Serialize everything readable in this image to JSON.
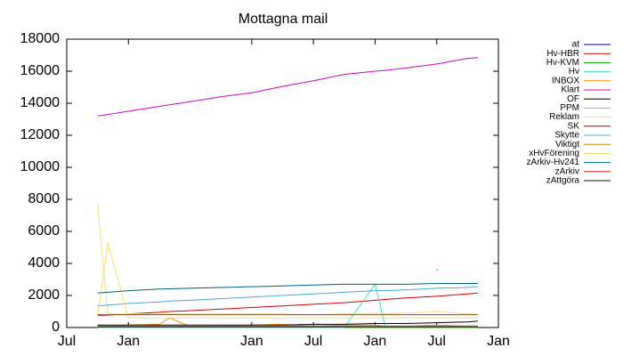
{
  "chart_data": {
    "type": "line",
    "title": "Mottagna mail",
    "x": [
      3,
      4,
      6,
      9,
      10,
      12,
      15,
      18,
      21,
      24,
      27,
      30,
      31,
      33,
      36,
      39,
      40
    ],
    "xlim": [
      0,
      42
    ],
    "xticks": [
      {
        "value": 0,
        "label": "Jul"
      },
      {
        "value": 6,
        "label": "Jan"
      },
      {
        "value": 18,
        "label": "Jan"
      },
      {
        "value": 24,
        "label": "Jul"
      },
      {
        "value": 30,
        "label": "Jan"
      },
      {
        "value": 36,
        "label": "Jul"
      },
      {
        "value": 42,
        "label": "Jan"
      }
    ],
    "ylim": [
      0,
      18000
    ],
    "yticks": [
      0,
      2000,
      4000,
      6000,
      8000,
      10000,
      12000,
      14000,
      16000,
      18000
    ],
    "legend": "top-right",
    "series": [
      {
        "name": "at",
        "color": "#0000cc",
        "values": [
          null,
          null,
          null,
          null,
          null,
          null,
          null,
          null,
          null,
          null,
          null,
          null,
          null,
          null,
          3600,
          null,
          null
        ]
      },
      {
        "name": "Hv-HBR",
        "color": "#cc0000",
        "values": [
          750,
          780,
          850,
          950,
          1000,
          1050,
          1150,
          1250,
          1350,
          1450,
          1550,
          1700,
          1750,
          1850,
          1950,
          2100,
          2150
        ]
      },
      {
        "name": "Hv-KVM",
        "color": "#00aa00",
        "values": [
          0,
          0,
          0,
          0,
          0,
          0,
          0,
          0,
          0,
          0,
          0,
          0,
          0,
          0,
          0,
          0,
          0
        ]
      },
      {
        "name": "Hv",
        "color": "#40e0d0",
        "values": [
          0,
          0,
          0,
          0,
          0,
          0,
          0,
          0,
          0,
          0,
          0,
          2700,
          50,
          50,
          50,
          50,
          50
        ]
      },
      {
        "name": "INBOX",
        "color": "#ff8c00",
        "values": [
          100,
          100,
          150,
          200,
          600,
          50,
          100,
          150,
          200,
          100,
          150,
          150,
          100,
          100,
          150,
          100,
          100
        ]
      },
      {
        "name": "Klart",
        "color": "#cc00cc",
        "values": [
          13200,
          13300,
          13500,
          13800,
          13900,
          14100,
          14400,
          14650,
          15050,
          15400,
          15800,
          16000,
          16050,
          16200,
          16450,
          16800,
          16850
        ]
      },
      {
        "name": "OF",
        "color": "#000000",
        "values": [
          150,
          150,
          150,
          150,
          150,
          150,
          150,
          150,
          150,
          200,
          200,
          250,
          250,
          250,
          300,
          350,
          400
        ]
      },
      {
        "name": "PPM",
        "color": "#aaaaaa",
        "values": [
          100,
          100,
          100,
          100,
          100,
          100,
          100,
          100,
          100,
          100,
          100,
          100,
          100,
          100,
          100,
          100,
          100
        ]
      },
      {
        "name": "Reklam",
        "color": "#f5dc8c",
        "values": [
          7700,
          850,
          850,
          850,
          850,
          850,
          850,
          850,
          850,
          800,
          850,
          900,
          850,
          900,
          1000,
          850,
          850
        ]
      },
      {
        "name": "SK",
        "color": "#aa0000",
        "values": [
          50,
          50,
          50,
          50,
          50,
          50,
          50,
          50,
          50,
          50,
          50,
          50,
          50,
          50,
          50,
          50,
          50
        ]
      },
      {
        "name": "Skytte",
        "color": "#4aa8d8",
        "values": [
          1350,
          1400,
          1500,
          1600,
          1650,
          1700,
          1800,
          1900,
          2000,
          2100,
          2200,
          2300,
          2300,
          2350,
          2450,
          2500,
          2550
        ]
      },
      {
        "name": "Viktigt",
        "color": "#cc8800",
        "values": [
          20,
          20,
          20,
          20,
          20,
          20,
          20,
          20,
          20,
          20,
          20,
          20,
          20,
          20,
          20,
          20,
          20
        ]
      },
      {
        "name": "xHvFörening",
        "color": "#f0e060",
        "values": [
          600,
          5300,
          600,
          600,
          600,
          600,
          600,
          600,
          600,
          600,
          600,
          600,
          600,
          600,
          600,
          600,
          600
        ]
      },
      {
        "name": "zArkiv-Hv241",
        "color": "#006080",
        "values": [
          2150,
          2200,
          2300,
          2400,
          2420,
          2450,
          2500,
          2550,
          2600,
          2650,
          2700,
          2700,
          2700,
          2700,
          2750,
          2750,
          2750
        ]
      },
      {
        "name": "zArkiv",
        "color": "#dd2222",
        "values": [
          800,
          800,
          800,
          800,
          800,
          800,
          800,
          800,
          800,
          800,
          800,
          800,
          800,
          800,
          800,
          800,
          800
        ]
      },
      {
        "name": "zAttgöra",
        "color": "#111111",
        "values": [
          50,
          50,
          50,
          50,
          50,
          50,
          50,
          50,
          50,
          50,
          50,
          50,
          50,
          50,
          50,
          50,
          50
        ]
      }
    ]
  }
}
